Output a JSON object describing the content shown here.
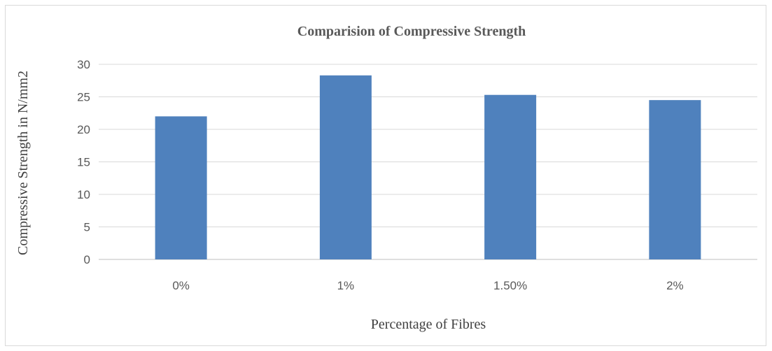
{
  "chart_data": {
    "type": "bar",
    "title": "Comparision of Compressive Strength",
    "xlabel": "Percentage of Fibres",
    "ylabel": "Compressive Strength in N/mm2",
    "categories": [
      "0%",
      "1%",
      "1.50%",
      "2%"
    ],
    "values": [
      22,
      28.3,
      25.3,
      24.5
    ],
    "ylim": [
      0,
      30
    ],
    "yticks": [
      0,
      5,
      10,
      15,
      20,
      25,
      30
    ],
    "grid": true,
    "legend": "none",
    "bar_color": "#4f81bd"
  }
}
